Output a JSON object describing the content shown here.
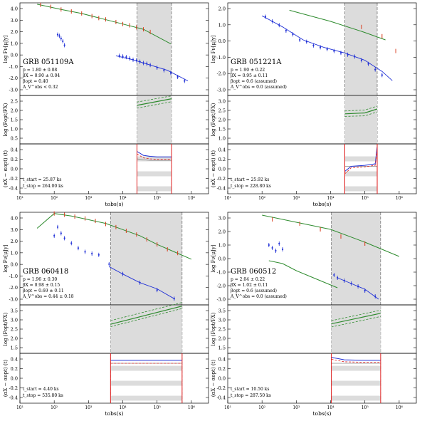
{
  "figure": {
    "panels": [
      {
        "grb": "GRB 051109A",
        "params": [
          "p = 1.80 ± 0.08",
          "βX = 0.90 ± 0.04",
          "βopt = 0.40",
          "A_V^obs < 0.32"
        ],
        "times": [
          "t_start = 25.87 ks",
          "t_stop = 264.00 ks"
        ],
        "tick_labels": {
          "x": [
            "10¹",
            "10²",
            "10³",
            "10⁴",
            "10⁵",
            "10⁶"
          ],
          "top_y": [
            "4.0",
            "3.0",
            "2.0",
            "1.0",
            "0.0",
            "-1.0",
            "-2.0",
            "-3.0"
          ],
          "mid_y": [
            "2.5",
            "2.0",
            "1.5",
            "1.0",
            "0.5"
          ],
          "bot_y": [
            "0.4",
            "0.2",
            "0.0",
            "-0.2",
            "-0.4"
          ]
        }
      },
      {
        "grb": "GRB 051221A",
        "params": [
          "p = 1.90 ± 0.22",
          "βX = 0.95 ± 0.11",
          "βopt = 0.6 (assumed)",
          "A_V^obs = 0.0 (assumed)"
        ],
        "times": [
          "t_start = 25.92 ks",
          "t_stop = 228.80 ks"
        ],
        "tick_labels": {
          "x": [
            "10¹",
            "10²",
            "10³",
            "10⁴",
            "10⁵",
            "10⁶"
          ],
          "top_y": [
            "2.0",
            "1.0",
            "0.0",
            "-1.0",
            "-2.0",
            "-3.0"
          ],
          "mid_y": [
            "3.0",
            "2.5",
            "2.0",
            "1.5",
            "1.0"
          ],
          "bot_y": [
            "0.4",
            "0.2",
            "0.0",
            "-0.2",
            "-0.4"
          ]
        }
      },
      {
        "grb": "GRB 060418",
        "params": [
          "p = 1.96 ± 0.30",
          "βX = 0.98 ± 0.15",
          "βopt = 0.69 ± 0.11",
          "A_V^obs = 0.44 ± 0.18"
        ],
        "times": [
          "t_start = 4.40 ks",
          "t_stop = 535.80 ks"
        ],
        "tick_labels": {
          "x": [
            "10¹",
            "10²",
            "10³",
            "10⁴",
            "10⁵",
            "10⁶"
          ],
          "top_y": [
            "4.0",
            "3.0",
            "2.0",
            "1.0",
            "0.0",
            "-1.0",
            "-2.0",
            "-3.0"
          ],
          "mid_y": [
            "3.5",
            "3.0",
            "2.5",
            "2.0",
            "1.5"
          ],
          "bot_y": [
            "0.4",
            "0.2",
            "0.0",
            "-0.2",
            "-0.4"
          ]
        }
      },
      {
        "grb": "GRB 060512",
        "params": [
          "p = 2.04 ± 0.22",
          "βX = 1.02 ± 0.11",
          "βopt = 0.6 (assumed)",
          "A_V^obs = 0.0 (assumed)"
        ],
        "times": [
          "t_start = 10.50 ks",
          "t_stop = 287.50 ks"
        ],
        "tick_labels": {
          "x": [
            "10¹",
            "10²",
            "10³",
            "10⁴",
            "10⁵",
            "10⁶"
          ],
          "top_y": [
            "3.0",
            "2.0",
            "1.0",
            "0.0",
            "-1.0",
            "-2.0",
            "-3.0"
          ],
          "mid_y": [
            "3.5",
            "3.0",
            "2.5",
            "2.0",
            "1.5"
          ],
          "bot_y": [
            "0.4",
            "0.2",
            "0.0",
            "-0.2",
            "-0.4"
          ]
        }
      }
    ],
    "axis_labels": {
      "top_y": "log Fν[μJy]",
      "mid_y": "log (Fopt/FX)",
      "bot_y": "(αX − αopt) (t)",
      "x": "tobs(s)"
    }
  },
  "chart_data": {
    "type": "line",
    "title": "",
    "xlabel": "tobs(s)",
    "xscale": "log",
    "xlim": [
      10,
      3000000
    ],
    "colors": {
      "optical": "#2e8b2e",
      "xray": "#1f2fd6",
      "data_red": "#d83a1a",
      "shade": "#dcdcdc",
      "window": "#e02020"
    },
    "panels": [
      {
        "grb": "GRB 051109A",
        "top": {
          "ylabel": "log Fν[μJy]",
          "ylim": [
            -3.0,
            4.0
          ],
          "optical_model": {
            "x": [
              1.5,
              2.2,
              2.8,
              3.4,
              4.0,
              4.6,
              5.4
            ],
            "y": [
              3.9,
              3.5,
              3.2,
              2.8,
              2.4,
              2.0,
              0.9
            ]
          },
          "xray_model": {
            "x": [
              3.8,
              4.3,
              4.8,
              5.3,
              5.9
            ],
            "y": [
              0.0,
              -0.3,
              -0.7,
              -1.1,
              -1.9
            ]
          },
          "optical_points": {
            "x": [
              1.6,
              1.9,
              2.2,
              2.5,
              2.8,
              3.1,
              3.3,
              3.5,
              3.8,
              4.0,
              4.2,
              4.4,
              4.6,
              4.8
            ],
            "y": [
              3.85,
              3.7,
              3.5,
              3.35,
              3.2,
              3.0,
              2.85,
              2.75,
              2.55,
              2.4,
              2.3,
              2.15,
              2.0,
              1.8
            ]
          },
          "xray_points": {
            "x": [
              2.1,
              2.15,
              2.2,
              2.25,
              2.3,
              3.9,
              4.0,
              4.1,
              4.2,
              4.3,
              4.4,
              4.5,
              4.6,
              4.7,
              4.8,
              5.0,
              5.2,
              5.4,
              5.6,
              5.8
            ],
            "y": [
              1.6,
              1.5,
              1.3,
              1.1,
              0.8,
              0.0,
              -0.05,
              -0.1,
              -0.2,
              -0.3,
              -0.35,
              -0.45,
              -0.55,
              -0.6,
              -0.7,
              -0.9,
              -1.1,
              -1.3,
              -1.6,
              -1.9
            ]
          },
          "shade": [
            4.413,
            5.422
          ]
        },
        "mid": {
          "ylabel": "log (Fopt/FX)",
          "ylim": [
            0.5,
            2.7
          ],
          "x": [
            4.413,
            5.422
          ],
          "y_center": [
            2.25,
            2.55
          ],
          "y_upper": [
            2.4,
            2.68
          ],
          "y_lower": [
            2.12,
            2.42
          ]
        },
        "bot": {
          "ylabel": "(αX − αopt) (t)",
          "ylim": [
            -0.5,
            0.5
          ],
          "x": [
            4.413,
            4.6,
            4.8,
            5.0,
            5.422
          ],
          "blue": [
            0.35,
            0.27,
            0.25,
            0.24,
            0.24
          ],
          "red": [
            0.3,
            0.22,
            0.2,
            0.19,
            0.19
          ],
          "band_center": [
            0.2,
            0.18,
            0.17,
            0.17,
            0.17
          ],
          "window": [
            4.413,
            5.422
          ]
        }
      },
      {
        "grb": "GRB 051221A",
        "top": {
          "ylabel": "log Fν[μJy]",
          "ylim": [
            -3.0,
            2.0
          ],
          "optical_model": {
            "x": [
              2.8,
              4.0,
              5.0,
              5.6
            ],
            "y": [
              1.6,
              1.0,
              0.4,
              0.0
            ]
          },
          "xray_model": {
            "x": [
              2.0,
              2.6,
              3.2,
              3.8,
              4.4,
              5.0,
              5.5,
              5.8
            ],
            "y": [
              1.3,
              0.7,
              0.0,
              -0.4,
              -0.7,
              -1.1,
              -1.7,
              -2.2
            ]
          },
          "optical_points": {
            "x": [
              4.9,
              5.5,
              5.9
            ],
            "y": [
              0.7,
              0.2,
              -0.6
            ]
          },
          "xray_points": {
            "x": [
              2.1,
              2.3,
              2.5,
              2.7,
              2.9,
              3.1,
              3.3,
              3.5,
              3.7,
              3.9,
              4.1,
              4.3,
              4.5,
              4.7,
              4.9,
              5.1,
              5.3,
              5.5
            ],
            "y": [
              1.25,
              1.0,
              0.8,
              0.5,
              0.3,
              0.0,
              -0.1,
              -0.3,
              -0.4,
              -0.5,
              -0.6,
              -0.7,
              -0.8,
              -0.9,
              -1.1,
              -1.3,
              -1.6,
              -1.9
            ]
          },
          "shade": [
            4.414,
            5.359
          ]
        },
        "mid": {
          "ylabel": "log (Fopt/FX)",
          "ylim": [
            0.5,
            3.0
          ],
          "x": [
            4.414,
            5.0,
            5.359
          ],
          "y_center": [
            2.05,
            2.1,
            2.3
          ],
          "y_upper": [
            2.2,
            2.25,
            2.45
          ],
          "y_lower": [
            1.92,
            1.95,
            2.15
          ]
        },
        "bot": {
          "ylabel": "(αX − αopt) (t)",
          "ylim": [
            -0.5,
            0.5
          ],
          "x": [
            4.414,
            4.6,
            5.0,
            5.3,
            5.359
          ],
          "blue": [
            -0.05,
            0.05,
            0.07,
            0.1,
            0.45
          ],
          "red": [
            -0.1,
            0.02,
            0.04,
            0.07,
            0.4
          ],
          "band_center": [
            0.05,
            0.05,
            0.05,
            0.05,
            0.05
          ],
          "window": [
            4.414,
            5.359
          ]
        }
      },
      {
        "grb": "GRB 060418",
        "top": {
          "ylabel": "log Fν[μJy]",
          "ylim": [
            -3.0,
            4.5
          ],
          "optical_model": {
            "x": [
              1.5,
              2.0,
              2.5,
              3.0,
              3.5,
              4.0,
              4.5,
              5.0,
              5.5,
              6.0
            ],
            "y": [
              3.2,
              4.4,
              4.2,
              3.9,
              3.6,
              3.1,
              2.6,
              1.9,
              1.3,
              0.7
            ]
          },
          "xray_model": {
            "x": [
              3.6,
              4.0,
              4.5,
              5.0,
              5.5
            ],
            "y": [
              0.1,
              -0.5,
              -1.2,
              -1.7,
              -2.5
            ]
          },
          "optical_points": {
            "x": [
              2.0,
              2.3,
              2.6,
              2.9,
              3.2,
              3.5,
              3.8,
              4.1,
              4.4,
              4.7,
              5.0,
              5.3,
              5.6
            ],
            "y": [
              4.4,
              4.3,
              4.15,
              4.0,
              3.8,
              3.55,
              3.3,
              3.0,
              2.7,
              2.3,
              1.9,
              1.5,
              1.2
            ]
          },
          "xray_points": {
            "x": [
              2.0,
              2.1,
              2.2,
              2.3,
              2.5,
              2.7,
              2.9,
              3.1,
              3.3,
              3.6,
              4.0,
              4.5,
              5.0,
              5.5
            ],
            "y": [
              2.6,
              3.3,
              2.8,
              2.4,
              2.0,
              1.6,
              1.3,
              1.15,
              1.05,
              0.3,
              -0.5,
              -1.2,
              -1.8,
              -2.5
            ]
          },
          "shade": [
            3.643,
            5.729
          ]
        },
        "mid": {
          "ylabel": "log (Fopt/FX)",
          "ylim": [
            1.5,
            3.5
          ],
          "x": [
            3.643,
            5.729
          ],
          "y_center": [
            2.7,
            3.45
          ],
          "y_upper": [
            2.85,
            3.6
          ],
          "y_lower": [
            2.6,
            3.35
          ]
        },
        "bot": {
          "ylabel": "(αX − αopt) (t)",
          "ylim": [
            -0.5,
            0.5
          ],
          "x": [
            3.643,
            4.5,
            5.729
          ],
          "blue": [
            0.36,
            0.36,
            0.36
          ],
          "red": [
            0.3,
            0.3,
            0.3
          ],
          "band_center": [
            0.3,
            0.3,
            0.3
          ],
          "window": [
            3.643,
            5.729
          ]
        }
      },
      {
        "grb": "GRB 060512",
        "top": {
          "ylabel": "log Fν[μJy]",
          "ylim": [
            -3.0,
            3.5
          ],
          "optical_model": {
            "x": [
              2.0,
              3.0,
              4.0,
              5.0,
              6.0
            ],
            "y": [
              3.3,
              2.8,
              2.3,
              1.4,
              0.4
            ],
            "dip_x": [
              2.2,
              2.6,
              3.0,
              3.4,
              3.8,
              4.2
            ],
            "dip_y": [
              0.1,
              -0.1,
              -0.6,
              -1.0,
              -1.4,
              -1.8
            ]
          },
          "xray_model": {
            "x": [
              4.2,
              4.6,
              5.0,
              5.4
            ],
            "y": [
              -1.1,
              -1.5,
              -1.9,
              -2.6
            ]
          },
          "optical_points": {
            "x": [
              2.3,
              3.1,
              3.7,
              4.3,
              5.0
            ],
            "y": [
              3.0,
              2.7,
              2.3,
              1.8,
              1.3
            ]
          },
          "xray_points": {
            "x": [
              2.2,
              2.3,
              2.4,
              2.5,
              2.6,
              4.1,
              4.2,
              4.4,
              4.6,
              4.8,
              5.0,
              5.3
            ],
            "y": [
              1.2,
              1.0,
              0.8,
              1.3,
              0.9,
              -0.9,
              -1.1,
              -1.3,
              -1.5,
              -1.7,
              -2.0,
              -2.4
            ]
          },
          "shade": [
            4.021,
            5.459
          ]
        },
        "mid": {
          "ylabel": "log (Fopt/FX)",
          "ylim": [
            1.5,
            3.8
          ],
          "x": [
            4.021,
            5.459
          ],
          "y_center": [
            2.9,
            3.4
          ],
          "y_upper": [
            3.05,
            3.55
          ],
          "y_lower": [
            2.75,
            3.25
          ]
        },
        "bot": {
          "ylabel": "(αX − αopt) (t)",
          "ylim": [
            -0.5,
            0.5
          ],
          "x": [
            4.021,
            4.4,
            5.0,
            5.459
          ],
          "blue": [
            0.42,
            0.37,
            0.36,
            0.36
          ],
          "red": [
            0.38,
            0.33,
            0.32,
            0.32
          ],
          "band_center": [
            0.3,
            0.3,
            0.3,
            0.3
          ],
          "window": [
            4.021,
            5.459
          ]
        }
      }
    ]
  }
}
